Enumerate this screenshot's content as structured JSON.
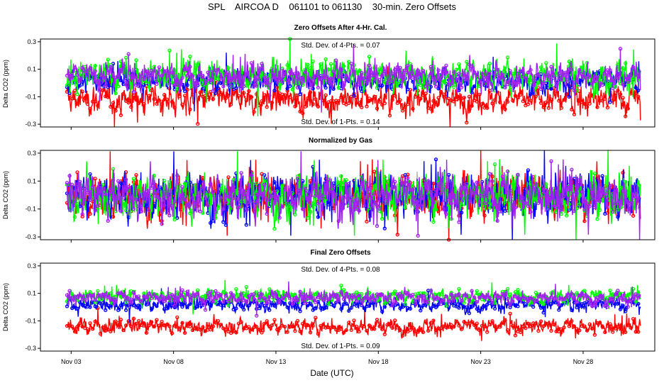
{
  "chart_data": {
    "type": "line",
    "title": "SPL    AIRCOA D    061101 to 061130    30-min. Zero Offsets",
    "xlabel": "Date (UTC)",
    "x_range_days": [
      1.5,
      31.5
    ],
    "x_ticks": [
      {
        "day": 3,
        "label": "Nov 03"
      },
      {
        "day": 8,
        "label": "Nov 08"
      },
      {
        "day": 13,
        "label": "Nov 13"
      },
      {
        "day": 18,
        "label": "Nov 18"
      },
      {
        "day": 23,
        "label": "Nov 23"
      },
      {
        "day": 28,
        "label": "Nov 28"
      }
    ],
    "data_day_range": [
      2.8,
      30.8
    ],
    "series_colors": {
      "red": "#ff0000",
      "green": "#00ff00",
      "blue": "#0000ff",
      "purple": "#a020f0",
      "black": "#000000"
    },
    "panels": [
      {
        "title": "Zero Offsets After 4-Hr. Cal.",
        "ylabel": "Delta CO2 (ppm)",
        "ylim": [
          -0.32,
          0.32
        ],
        "yticks": [
          0.3,
          0.1,
          -0.1,
          -0.3
        ],
        "yticklabels": [
          "0.3",
          "0.1",
          "-0.1",
          "-0.3"
        ],
        "annotation_top": "Std. Dev. of 4-Pts. = 0.07",
        "annotation_bottom": "Std. Dev. of 1-Pts. = 0.14",
        "series": [
          {
            "name": "red",
            "color": "#ff0000",
            "mean": -0.12,
            "sd": 0.07
          },
          {
            "name": "blue",
            "color": "#0000ff",
            "mean": 0.02,
            "sd": 0.06
          },
          {
            "name": "green",
            "color": "#00ff00",
            "mean": 0.06,
            "sd": 0.08
          },
          {
            "name": "purple",
            "color": "#a020f0",
            "mean": 0.05,
            "sd": 0.07
          }
        ]
      },
      {
        "title": "Normalized by Gas",
        "ylabel": "Delta CO2 (ppm)",
        "ylim": [
          -0.32,
          0.32
        ],
        "yticks": [
          0.3,
          0.1,
          -0.1,
          -0.3
        ],
        "yticklabels": [
          "0.3",
          "0.1",
          "-0.1",
          "-0.3"
        ],
        "annotation_top": "",
        "annotation_bottom": "",
        "series": [
          {
            "name": "black",
            "color": "#000000",
            "mean": 0.0,
            "sd": 0.05
          },
          {
            "name": "red",
            "color": "#ff0000",
            "mean": 0.0,
            "sd": 0.11
          },
          {
            "name": "blue",
            "color": "#0000ff",
            "mean": 0.0,
            "sd": 0.11
          },
          {
            "name": "green",
            "color": "#00ff00",
            "mean": 0.0,
            "sd": 0.11
          },
          {
            "name": "purple",
            "color": "#a020f0",
            "mean": 0.0,
            "sd": 0.11
          }
        ]
      },
      {
        "title": "Final Zero Offsets",
        "ylabel": "Delta CO2 (ppm)",
        "ylim": [
          -0.32,
          0.32
        ],
        "yticks": [
          0.3,
          0.1,
          -0.1,
          -0.3
        ],
        "yticklabels": [
          "0.3",
          "0.1",
          "-0.1",
          "-0.3"
        ],
        "annotation_top": "Std. Dev. of 4-Pts. = 0.08",
        "annotation_bottom": "Std. Dev. of 1-Pts. = 0.09",
        "series": [
          {
            "name": "red",
            "color": "#ff0000",
            "mean": -0.14,
            "sd": 0.04
          },
          {
            "name": "blue",
            "color": "#0000ff",
            "mean": 0.02,
            "sd": 0.035
          },
          {
            "name": "green",
            "color": "#00ff00",
            "mean": 0.08,
            "sd": 0.035
          },
          {
            "name": "purple",
            "color": "#a020f0",
            "mean": 0.07,
            "sd": 0.035
          }
        ]
      }
    ]
  }
}
